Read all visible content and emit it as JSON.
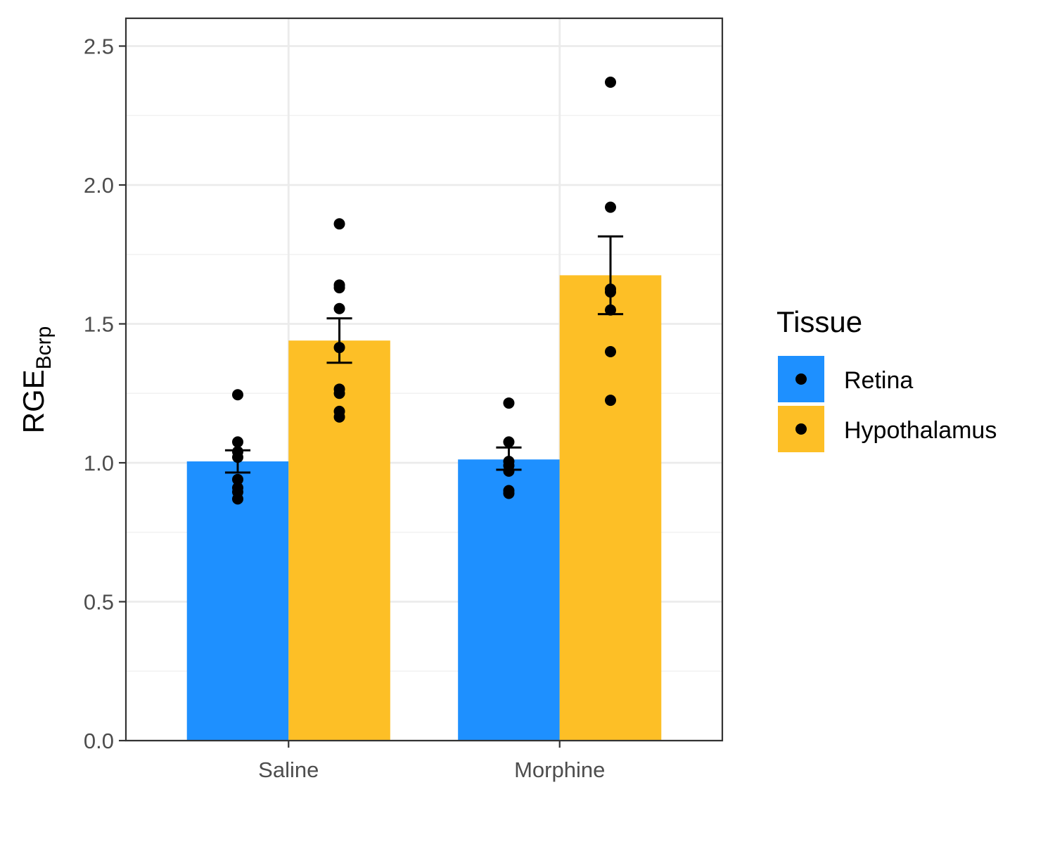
{
  "chart_data": {
    "type": "bar",
    "title": "",
    "xlabel": "",
    "ylabel": "RGE",
    "ylabel_subscript": "Bcrp",
    "categories": [
      "Saline",
      "Morphine"
    ],
    "ylim": [
      0,
      2.6
    ],
    "yticks": [
      0.0,
      0.5,
      1.0,
      1.5,
      2.0,
      2.5
    ],
    "ytick_labels": [
      "0.0",
      "0.5",
      "1.0",
      "1.5",
      "2.0",
      "2.5"
    ],
    "grid": true,
    "legend": {
      "title": "Tissue",
      "position": "right"
    },
    "series": [
      {
        "name": "Retina",
        "color": "#1e90ff",
        "values": [
          1.005,
          1.012
        ],
        "error_low": [
          0.965,
          0.975
        ],
        "error_high": [
          1.045,
          1.055
        ],
        "points": [
          [
            1.245,
            1.075,
            1.04,
            1.02,
            0.94,
            0.91,
            0.895,
            0.87
          ],
          [
            1.215,
            1.075,
            1.005,
            0.99,
            0.97,
            0.9,
            0.89
          ]
        ]
      },
      {
        "name": "Hypothalamus",
        "color": "#fdbf26",
        "values": [
          1.44,
          1.675
        ],
        "error_low": [
          1.36,
          1.535
        ],
        "error_high": [
          1.52,
          1.815
        ],
        "points": [
          [
            1.86,
            1.64,
            1.63,
            1.555,
            1.415,
            1.265,
            1.25,
            1.185,
            1.165
          ],
          [
            2.37,
            1.92,
            1.625,
            1.615,
            1.55,
            1.4,
            1.225
          ]
        ]
      }
    ]
  }
}
